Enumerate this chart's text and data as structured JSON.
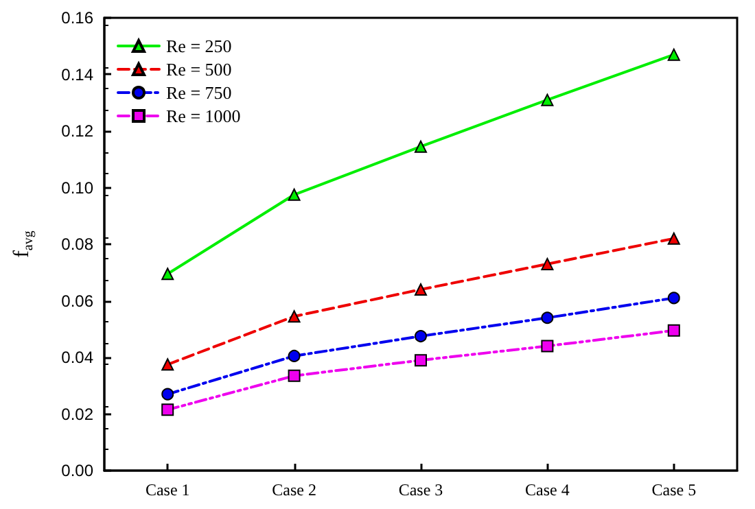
{
  "chart_data": {
    "type": "line",
    "ylabel": "f$_{avg}$",
    "categories": [
      "Case 1",
      "Case 2",
      "Case 3",
      "Case 4",
      "Case 5"
    ],
    "series": [
      {
        "name": "Re = 250",
        "color": "#00ee00",
        "marker": "triangle",
        "line_style": "solid",
        "values": [
          0.0695,
          0.0975,
          0.1145,
          0.131,
          0.147
        ]
      },
      {
        "name": "Re = 500",
        "color": "#ee0000",
        "marker": "triangle",
        "line_style": "dashed",
        "values": [
          0.0375,
          0.0545,
          0.064,
          0.073,
          0.082
        ]
      },
      {
        "name": "Re = 750",
        "color": "#0000ee",
        "marker": "circle",
        "line_style": "dashdot",
        "values": [
          0.027,
          0.0405,
          0.0475,
          0.054,
          0.061
        ]
      },
      {
        "name": "Re = 1000",
        "color": "#ee00ee",
        "marker": "square",
        "line_style": "dashdotdot",
        "values": [
          0.0215,
          0.0335,
          0.039,
          0.044,
          0.0495
        ]
      }
    ],
    "ylim": [
      0,
      0.16
    ],
    "yticks": [
      {
        "value": 0,
        "label": "0.00"
      },
      0.02,
      0.04,
      0.06,
      0.08,
      {
        "value": 0.1,
        "label": "0.10"
      },
      0.12,
      0.14,
      0.16
    ],
    "grid": false,
    "legend": "top left"
  }
}
